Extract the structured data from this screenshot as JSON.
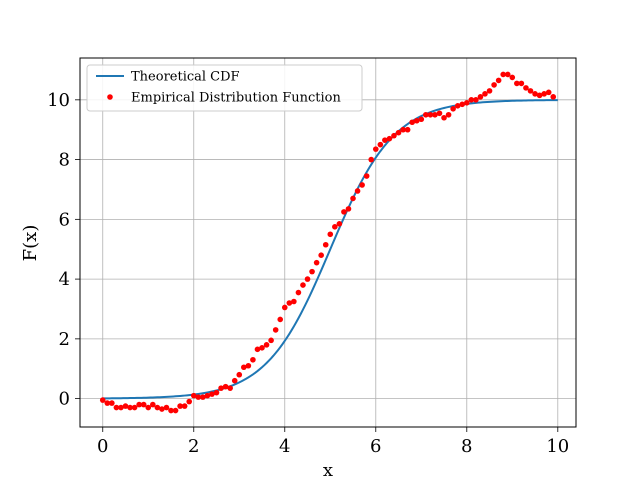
{
  "chart_data": {
    "type": "line",
    "title": "",
    "xlabel": "x",
    "ylabel": "F(x)",
    "xlim": [
      -0.5,
      10.4
    ],
    "ylim": [
      -0.95,
      11.4
    ],
    "xticks": [
      0,
      2,
      4,
      6,
      8,
      10
    ],
    "yticks": [
      0,
      2,
      4,
      6,
      8,
      10
    ],
    "grid": true,
    "legend": {
      "placement": "top-left",
      "entries": [
        "Theoretical CDF",
        "Empirical Distribution Function"
      ]
    },
    "series": [
      {
        "name": "Theoretical CDF",
        "kind": "line",
        "color": "#1f77b4",
        "function": "logistic",
        "params": {
          "L": 10,
          "x0": 5,
          "s": 0.7
        },
        "x": [
          0,
          10
        ]
      },
      {
        "name": "Empirical Distribution Function",
        "kind": "scatter",
        "color": "#ff0000",
        "x": [
          0.0,
          0.1,
          0.2,
          0.3,
          0.4,
          0.5,
          0.6,
          0.7,
          0.8,
          0.9,
          1.0,
          1.1,
          1.2,
          1.3,
          1.4,
          1.5,
          1.6,
          1.7,
          1.8,
          1.9,
          2.0,
          2.1,
          2.2,
          2.3,
          2.4,
          2.5,
          2.6,
          2.7,
          2.8,
          2.9,
          3.0,
          3.1,
          3.2,
          3.3,
          3.4,
          3.5,
          3.6,
          3.7,
          3.8,
          3.9,
          4.0,
          4.1,
          4.2,
          4.3,
          4.4,
          4.5,
          4.6,
          4.7,
          4.8,
          4.9,
          5.0,
          5.1,
          5.2,
          5.3,
          5.4,
          5.5,
          5.6,
          5.7,
          5.8,
          5.9,
          6.0,
          6.1,
          6.2,
          6.3,
          6.4,
          6.5,
          6.6,
          6.7,
          6.8,
          6.9,
          7.0,
          7.1,
          7.2,
          7.3,
          7.4,
          7.5,
          7.6,
          7.7,
          7.8,
          7.9,
          8.0,
          8.1,
          8.2,
          8.3,
          8.4,
          8.5,
          8.6,
          8.7,
          8.8,
          8.9,
          9.0,
          9.1,
          9.2,
          9.3,
          9.4,
          9.5,
          9.6,
          9.7,
          9.8,
          9.9
        ],
        "y": [
          -0.05,
          -0.15,
          -0.15,
          -0.3,
          -0.3,
          -0.25,
          -0.3,
          -0.3,
          -0.2,
          -0.2,
          -0.3,
          -0.2,
          -0.3,
          -0.35,
          -0.3,
          -0.4,
          -0.4,
          -0.25,
          -0.25,
          -0.1,
          0.1,
          0.05,
          0.05,
          0.1,
          0.15,
          0.2,
          0.35,
          0.4,
          0.35,
          0.6,
          0.8,
          1.05,
          1.1,
          1.3,
          1.65,
          1.7,
          1.8,
          1.95,
          2.3,
          2.65,
          3.05,
          3.2,
          3.25,
          3.55,
          3.8,
          4.0,
          4.25,
          4.55,
          4.8,
          5.15,
          5.5,
          5.75,
          5.85,
          6.25,
          6.35,
          6.7,
          6.95,
          7.15,
          7.45,
          8.0,
          8.35,
          8.5,
          8.65,
          8.7,
          8.8,
          8.9,
          9.0,
          9.0,
          9.25,
          9.3,
          9.35,
          9.5,
          9.5,
          9.5,
          9.55,
          9.4,
          9.5,
          9.7,
          9.8,
          9.85,
          9.9,
          10.0,
          10.0,
          10.1,
          10.2,
          10.3,
          10.5,
          10.65,
          10.85,
          10.85,
          10.75,
          10.55,
          10.55,
          10.4,
          10.3,
          10.2,
          10.15,
          10.2,
          10.25,
          10.1
        ]
      }
    ]
  }
}
